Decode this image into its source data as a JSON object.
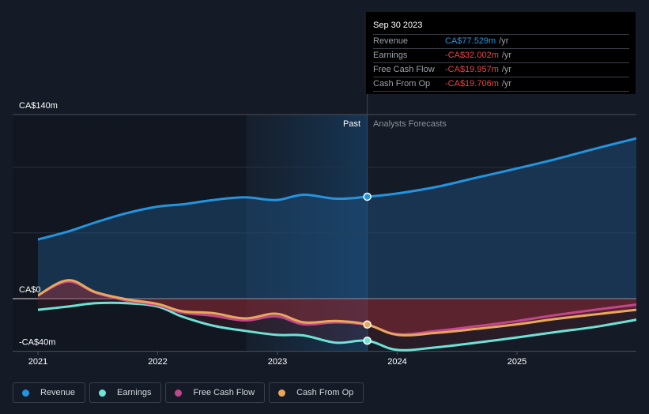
{
  "tooltip": {
    "date": "Sep 30 2023",
    "rows": [
      {
        "label": "Revenue",
        "value": "CA$77.529m",
        "unit": "/yr"
      },
      {
        "label": "Earnings",
        "value": "-CA$32.002m",
        "unit": "/yr"
      },
      {
        "label": "Free Cash Flow",
        "value": "-CA$19.957m",
        "unit": "/yr"
      },
      {
        "label": "Cash From Op",
        "value": "-CA$19.706m",
        "unit": "/yr"
      }
    ]
  },
  "legend": [
    {
      "label": "Revenue",
      "color": "#2394df"
    },
    {
      "label": "Earnings",
      "color": "#6ce3d6"
    },
    {
      "label": "Free Cash Flow",
      "color": "#c1478c"
    },
    {
      "label": "Cash From Op",
      "color": "#e8a85b"
    }
  ],
  "chart_data": {
    "type": "line",
    "title": "",
    "xlabel": "",
    "ylabel": "",
    "y_unit": "CA$ m",
    "ylim": [
      -40,
      140
    ],
    "xlim": [
      2021.0,
      2025.99
    ],
    "y_tick_labels": [
      {
        "value": 140,
        "label": "CA$140m"
      },
      {
        "value": 0,
        "label": "CA$0"
      },
      {
        "value": -40,
        "label": "-CA$40m"
      }
    ],
    "y_gridlines": [
      140,
      100,
      50,
      0,
      -40
    ],
    "x_tick_labels": [
      {
        "value": 2021,
        "label": "2021"
      },
      {
        "value": 2022,
        "label": "2022"
      },
      {
        "value": 2023,
        "label": "2023"
      },
      {
        "value": 2024,
        "label": "2024"
      },
      {
        "value": 2025,
        "label": "2025"
      }
    ],
    "divider": {
      "x": 2023.75,
      "past_label": "Past",
      "forecast_label": "Analysts Forecasts"
    },
    "past_highlight_start": 2022.74,
    "grid": true,
    "legend_position": "bottom-left",
    "series": [
      {
        "name": "Revenue",
        "color": "#2394df",
        "x": [
          2021.0,
          2021.25,
          2021.48,
          2021.74,
          2022.0,
          2022.23,
          2022.46,
          2022.73,
          2022.99,
          2023.22,
          2023.49,
          2023.75,
          2024.0,
          2024.33,
          2024.66,
          2025.0,
          2025.32,
          2025.65,
          2026.0
        ],
        "values": [
          45,
          51,
          58,
          65,
          70,
          72,
          75,
          77,
          75,
          79,
          76,
          77.5,
          80,
          85,
          92,
          99,
          106,
          114,
          122
        ]
      },
      {
        "name": "Earnings",
        "color": "#6ce3d6",
        "x": [
          2021.0,
          2021.25,
          2021.48,
          2021.74,
          2022.0,
          2022.2,
          2022.46,
          2022.73,
          2022.99,
          2023.22,
          2023.49,
          2023.75,
          2024.0,
          2024.33,
          2024.66,
          2025.0,
          2025.32,
          2025.65,
          2026.0
        ],
        "values": [
          -8.5,
          -6,
          -3.5,
          -3.5,
          -6,
          -13.5,
          -20.5,
          -24.5,
          -27.5,
          -28,
          -33.5,
          -32,
          -39,
          -37,
          -33.5,
          -29.5,
          -25.5,
          -21.5,
          -16
        ]
      },
      {
        "name": "Free Cash Flow",
        "color": "#c1478c",
        "x": [
          2021.0,
          2021.25,
          2021.48,
          2021.74,
          2022.0,
          2022.2,
          2022.46,
          2022.73,
          2022.99,
          2023.22,
          2023.49,
          2023.75,
          2024.0,
          2024.33,
          2024.66,
          2025.0,
          2025.32,
          2025.65,
          2026.0
        ],
        "values": [
          2.5,
          13,
          4.5,
          -1.5,
          -5,
          -10.5,
          -13,
          -16.5,
          -13.5,
          -19.5,
          -18,
          -20,
          -27,
          -24.5,
          -21,
          -17,
          -12.5,
          -8.5,
          -4.5
        ]
      },
      {
        "name": "Cash From Op",
        "color": "#e8a85b",
        "x": [
          2021.0,
          2021.25,
          2021.48,
          2021.74,
          2022.0,
          2022.2,
          2022.46,
          2022.73,
          2022.99,
          2023.22,
          2023.49,
          2023.75,
          2024.0,
          2024.33,
          2024.66,
          2025.0,
          2025.32,
          2025.65,
          2026.0
        ],
        "values": [
          2.5,
          14,
          5,
          -0.5,
          -4,
          -9.5,
          -11,
          -15,
          -11.5,
          -18,
          -17,
          -19.7,
          -27.5,
          -26,
          -23,
          -19.5,
          -15.5,
          -12,
          -8.5
        ]
      }
    ],
    "highlight_points": [
      {
        "series": "Revenue",
        "x": 2023.75,
        "value": 77.529
      },
      {
        "series": "Earnings",
        "x": 2023.75,
        "value": -32.002
      },
      {
        "series": "Cash From Op",
        "x": 2023.75,
        "value": -19.706
      }
    ]
  }
}
